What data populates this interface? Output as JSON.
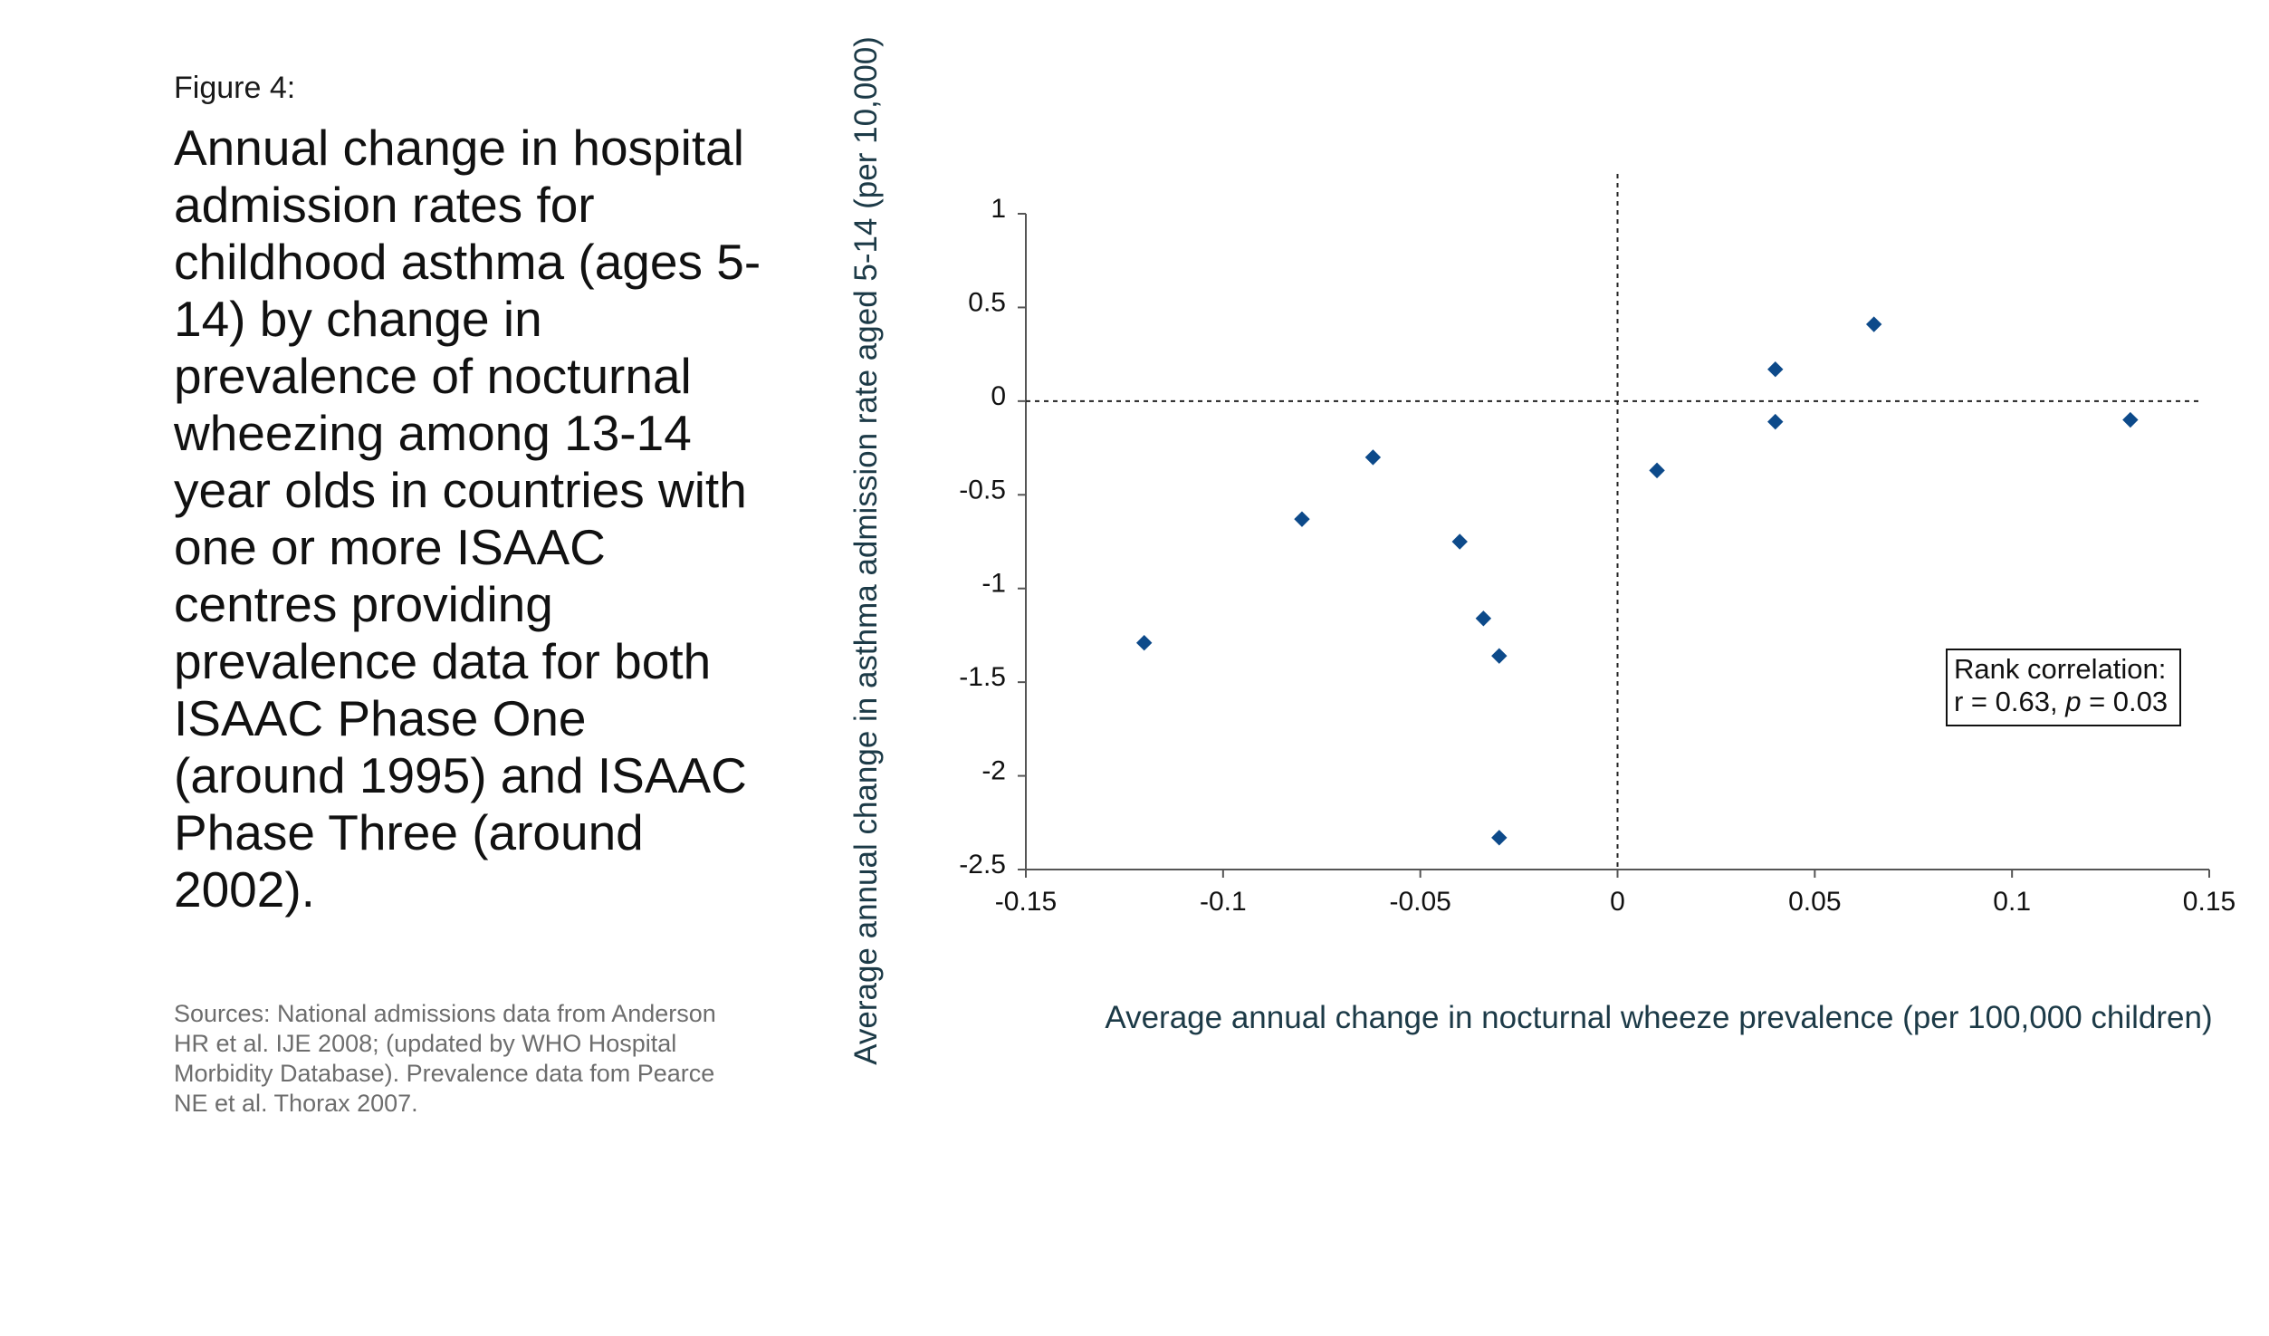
{
  "figure": {
    "label": "Figure 4:",
    "title": "Annual change in hospital admission rates for childhood asthma (ages 5-14) by change in prevalence of nocturnal wheezing among 13-14 year olds in countries with one or more ISAAC centres providing prevalence data for both ISAAC Phase One (around 1995) and ISAAC Phase Three (around 2002).",
    "sources": "Sources: National admissions data from Anderson HR et al. IJE 2008;  (updated by WHO Hospital Morbidity Database). Prevalence data fom Pearce NE et al. Thorax 2007."
  },
  "chart_data": {
    "type": "scatter",
    "xlabel": "Average annual change in nocturnal wheeze prevalence (per 100,000 children)",
    "ylabel": "Average annual change in asthma admission rate aged 5-14 (per 10,000)",
    "xlim": [
      -0.15,
      0.15
    ],
    "ylim": [
      -2.5,
      1
    ],
    "x_ticks": [
      -0.15,
      -0.1,
      -0.05,
      0,
      0.05,
      0.1,
      0.15
    ],
    "x_tick_labels": [
      "-0.15",
      "-0.1",
      "-0.05",
      "0",
      "0.05",
      "0.1",
      "0.15"
    ],
    "y_ticks": [
      1,
      0.5,
      0,
      -0.5,
      -1,
      -1.5,
      -2,
      -2.5
    ],
    "y_tick_labels": [
      "1",
      "0.5",
      "0",
      "-0.5",
      "-1",
      "-1.5",
      "-2",
      "-2.5"
    ],
    "reference_lines": {
      "x_zero": true,
      "y_zero": true,
      "style": "dashed"
    },
    "grid": false,
    "marker": "diamond",
    "marker_color": "#0d4a8a",
    "points": [
      {
        "x": -0.12,
        "y": -1.29
      },
      {
        "x": -0.08,
        "y": -0.63
      },
      {
        "x": -0.062,
        "y": -0.3
      },
      {
        "x": -0.04,
        "y": -0.75
      },
      {
        "x": -0.034,
        "y": -1.16
      },
      {
        "x": -0.03,
        "y": -1.36
      },
      {
        "x": -0.03,
        "y": -2.33
      },
      {
        "x": 0.01,
        "y": -0.37
      },
      {
        "x": 0.04,
        "y": 0.17
      },
      {
        "x": 0.04,
        "y": -0.11
      },
      {
        "x": 0.065,
        "y": 0.41
      },
      {
        "x": 0.13,
        "y": -0.1
      }
    ],
    "annotation": {
      "line1": "Rank correlation:",
      "line2_prefix": "r = 0.63, ",
      "line2_p": "p",
      "line2_suffix": " = 0.03"
    }
  }
}
